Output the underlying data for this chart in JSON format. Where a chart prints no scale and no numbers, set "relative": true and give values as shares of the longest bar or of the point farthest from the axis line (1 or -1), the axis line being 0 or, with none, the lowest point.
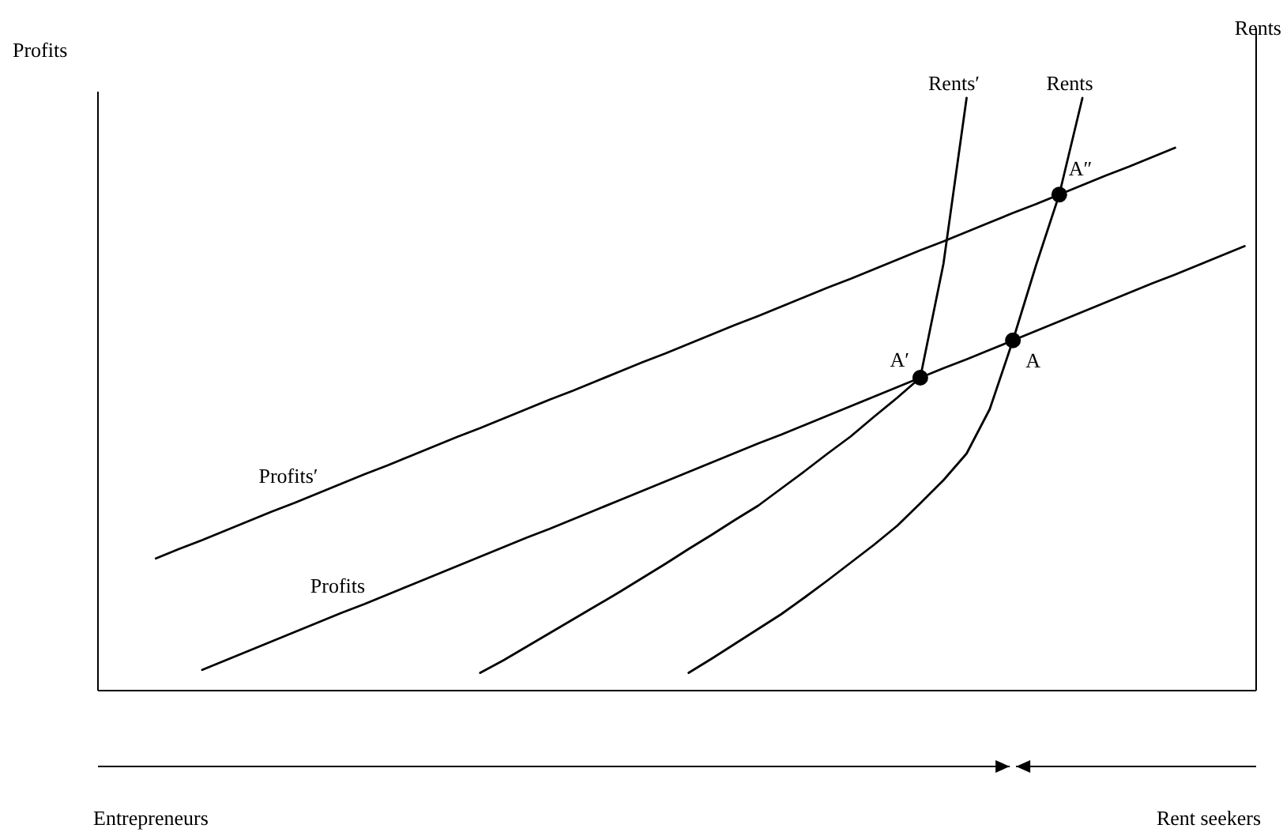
{
  "chart_data": {
    "type": "line",
    "relative": true,
    "ylabel": "Profits",
    "y2label": "Rents",
    "categories": [
      null,
      null,
      null,
      null,
      null,
      null,
      null,
      null,
      null,
      null,
      null,
      null,
      null,
      null,
      null,
      null,
      null,
      null,
      null,
      null,
      null,
      null,
      null,
      null,
      null,
      null,
      null,
      null,
      null,
      null,
      null,
      null,
      null,
      null,
      null,
      null,
      null,
      null,
      null,
      null,
      null,
      null,
      null,
      null,
      null,
      null,
      null,
      null,
      null,
      null
    ],
    "series": [
      {
        "name": "Profits′",
        "color": "#000000",
        "values": [
          null,
          null,
          0.223,
          0.239,
          0.254,
          0.27,
          0.286,
          0.302,
          0.317,
          0.333,
          0.349,
          0.365,
          0.38,
          0.396,
          0.412,
          0.428,
          0.443,
          0.459,
          0.475,
          0.491,
          0.506,
          0.522,
          0.538,
          0.554,
          0.569,
          0.585,
          0.601,
          0.617,
          0.632,
          0.648,
          0.664,
          0.68,
          0.695,
          0.711,
          0.727,
          0.743,
          0.758,
          0.774,
          0.79,
          0.806,
          0.821,
          0.837,
          0.853,
          0.869,
          0.884,
          0.9,
          0.916,
          null,
          null,
          null
        ]
      },
      {
        "name": "Profits",
        "color": "#000000",
        "values": [
          null,
          null,
          null,
          null,
          0.035,
          0.051,
          0.067,
          0.083,
          0.099,
          0.115,
          0.131,
          0.146,
          0.162,
          0.178,
          0.194,
          0.21,
          0.226,
          0.242,
          0.258,
          0.273,
          0.289,
          0.305,
          0.321,
          0.337,
          0.353,
          0.369,
          0.385,
          0.401,
          0.417,
          0.432,
          0.448,
          0.464,
          0.48,
          0.496,
          0.512,
          0.528,
          0.544,
          0.559,
          0.575,
          0.591,
          0.607,
          0.623,
          0.639,
          0.655,
          0.671,
          0.687,
          0.702,
          0.718,
          0.734,
          0.75
        ]
      },
      {
        "name": "Rents′",
        "color": "#000000",
        "values": [
          null,
          null,
          null,
          null,
          null,
          null,
          null,
          null,
          null,
          null,
          null,
          null,
          null,
          null,
          null,
          null,
          0.03,
          0.051,
          0.074,
          0.097,
          0.12,
          0.143,
          0.166,
          0.19,
          0.214,
          0.239,
          0.263,
          0.288,
          0.312,
          0.341,
          0.37,
          0.4,
          0.429,
          0.462,
          0.494,
          0.528,
          0.72,
          1.0,
          null,
          null,
          null,
          null,
          null,
          null,
          null,
          null,
          null,
          null,
          null,
          null
        ]
      },
      {
        "name": "Rents",
        "color": "#000000",
        "values": [
          null,
          null,
          null,
          null,
          null,
          null,
          null,
          null,
          null,
          null,
          null,
          null,
          null,
          null,
          null,
          null,
          null,
          null,
          null,
          null,
          null,
          null,
          null,
          null,
          null,
          0.03,
          0.054,
          0.079,
          0.104,
          0.129,
          0.157,
          0.186,
          0.216,
          0.246,
          0.278,
          0.316,
          0.355,
          0.4,
          0.475,
          0.591,
          0.718,
          0.837,
          1.0,
          null,
          null,
          null,
          null,
          null,
          null,
          null
        ]
      }
    ],
    "annotations": [
      {
        "text": "A′",
        "y": 0.528
      },
      {
        "text": "A",
        "y": 0.591
      },
      {
        "text": "A″",
        "y": 0.837
      },
      "Entrepreneurs",
      "Rent seekers"
    ]
  }
}
